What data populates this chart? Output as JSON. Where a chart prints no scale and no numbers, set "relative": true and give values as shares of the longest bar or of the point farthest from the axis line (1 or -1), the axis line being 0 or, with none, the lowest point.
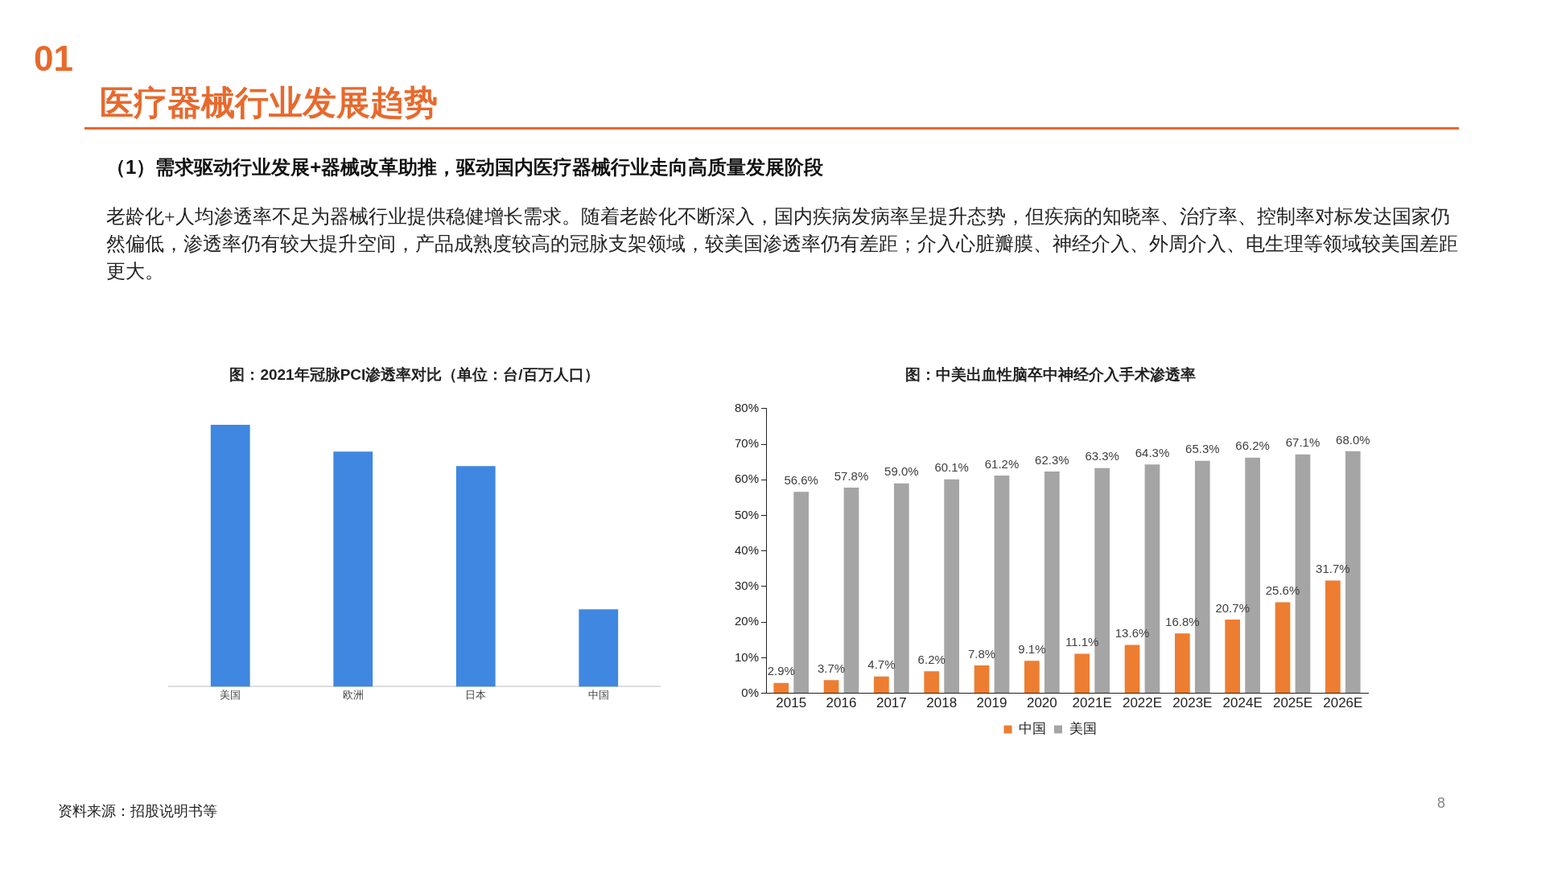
{
  "chart_data": [
    {
      "type": "other",
      "title": "医疗器械行业发展趋势",
      "annotations": [
        "01",
        "（1）需求驱动行业发展+器械改革助推，驱动国内医疗器械行业走向高质量发展阶段",
        "老龄化+人均渗透率不足为器械行业提供稳健增长需求。随着老龄化不断深入，国内疾病发病率呈提升态势，但疾病的知晓率、治疗率、控制率对标发达国家仍然偏低，渗透率仍有较大提升空间，产品成熟度较高的冠脉支架领域，较美国渗透率仍有差距；介入心脏瓣膜、神经介入、外周介入、电生理等领域较美国差距更大。",
        "资料来源：招股说明书等",
        "8"
      ]
    },
    {
      "type": "bar",
      "title": "图：2021年冠脉PCI渗透率对比（单位：台/百万人口）",
      "relative": true,
      "categories": [
        "美国",
        "欧洲",
        "日本",
        "中国"
      ],
      "values": [
        1,
        0.897,
        0.842,
        0.295
      ],
      "color": "#3f87e0",
      "grid": false,
      "legend": false
    },
    {
      "type": "bar",
      "title": "图：中美出血性脑卒中神经介入手术渗透率",
      "categories": [
        "2015",
        "2016",
        "2017",
        "2018",
        "2019",
        "2020",
        "2021E",
        "2022E",
        "2023E",
        "2024E",
        "2025E",
        "2026E"
      ],
      "series": [
        {
          "name": "中国",
          "color": "#ed7d31",
          "values": [
            2.9,
            3.7,
            4.7,
            6.2,
            7.8,
            9.1,
            11.1,
            13.6,
            16.8,
            20.7,
            25.6,
            31.7
          ],
          "value_labels": [
            "2.9%",
            "3.7%",
            "4.7%",
            "6.2%",
            "7.8%",
            "9.1%",
            "11.1%",
            "13.6%",
            "16.8%",
            "20.7%",
            "25.6%",
            "31.7%"
          ]
        },
        {
          "name": "美国",
          "color": "#a5a5a5",
          "values": [
            56.6,
            57.8,
            59.0,
            60.1,
            61.2,
            62.3,
            63.3,
            64.3,
            65.3,
            66.2,
            67.1,
            68.0
          ],
          "value_labels": [
            "56.6%",
            "57.8%",
            "59.0%",
            "60.1%",
            "61.2%",
            "62.3%",
            "63.3%",
            "64.3%",
            "65.3%",
            "66.2%",
            "67.1%",
            "68.0%"
          ]
        }
      ],
      "ylim": [
        0,
        80
      ],
      "yticks": [
        {
          "value": 0,
          "label": "0%"
        },
        {
          "value": 10,
          "label": "10%"
        },
        {
          "value": 20,
          "label": "20%"
        },
        {
          "value": 30,
          "label": "30%"
        },
        {
          "value": 40,
          "label": "40%"
        },
        {
          "value": 50,
          "label": "50%"
        },
        {
          "value": 60,
          "label": "60%"
        },
        {
          "value": 70,
          "label": "70%"
        },
        {
          "value": 80,
          "label": "80%"
        }
      ],
      "grid": false,
      "legend": "bottom"
    }
  ]
}
